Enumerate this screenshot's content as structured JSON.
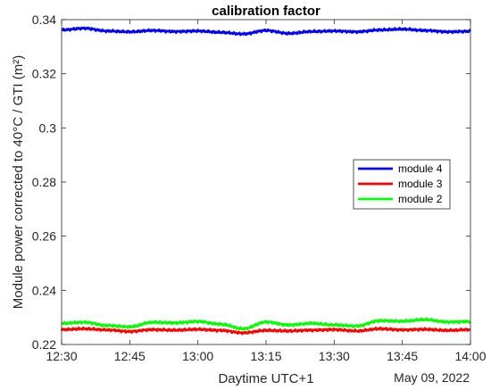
{
  "chart_data": {
    "type": "line",
    "title": "calibration factor",
    "xlabel": "Daytime UTC+1",
    "ylabel": "Module power corrected to 40°C / GTI (m²)",
    "date_label": "May 09, 2022",
    "x_ticks": [
      "12:30",
      "12:45",
      "13:00",
      "13:15",
      "13:30",
      "13:45",
      "14:00"
    ],
    "y_ticks": [
      "0.22",
      "0.24",
      "0.26",
      "0.28",
      "0.3",
      "0.32",
      "0.34"
    ],
    "xlim": [
      "12:30",
      "14:00"
    ],
    "ylim": [
      0.22,
      0.34
    ],
    "grid": false,
    "legend_position": "right",
    "series": [
      {
        "name": "module 4",
        "color": "#0000ff",
        "x": [
          "12:30",
          "12:35",
          "12:40",
          "12:45",
          "12:50",
          "12:55",
          "13:00",
          "13:05",
          "13:10",
          "13:15",
          "13:20",
          "13:25",
          "13:30",
          "13:35",
          "13:40",
          "13:45",
          "13:50",
          "13:55",
          "14:00"
        ],
        "values": [
          0.3362,
          0.3368,
          0.3358,
          0.3355,
          0.336,
          0.3356,
          0.3358,
          0.3353,
          0.3347,
          0.336,
          0.3349,
          0.3356,
          0.3358,
          0.3355,
          0.3362,
          0.3365,
          0.336,
          0.3355,
          0.3357
        ]
      },
      {
        "name": "module 3",
        "color": "#ff0000",
        "x": [
          "12:30",
          "12:35",
          "12:40",
          "12:45",
          "12:50",
          "12:55",
          "13:00",
          "13:05",
          "13:10",
          "13:15",
          "13:20",
          "13:25",
          "13:30",
          "13:35",
          "13:40",
          "13:45",
          "13:50",
          "13:55",
          "14:00"
        ],
        "values": [
          0.2255,
          0.2258,
          0.2254,
          0.2248,
          0.2255,
          0.2253,
          0.2256,
          0.2252,
          0.2243,
          0.2252,
          0.225,
          0.2253,
          0.2255,
          0.225,
          0.2258,
          0.2254,
          0.2256,
          0.2252,
          0.2255
        ]
      },
      {
        "name": "module 2",
        "color": "#00ff00",
        "x": [
          "12:30",
          "12:35",
          "12:40",
          "12:45",
          "12:50",
          "12:55",
          "13:00",
          "13:05",
          "13:10",
          "13:15",
          "13:20",
          "13:25",
          "13:30",
          "13:35",
          "13:40",
          "13:45",
          "13:50",
          "13:55",
          "14:00"
        ],
        "values": [
          0.2278,
          0.2282,
          0.227,
          0.2265,
          0.2282,
          0.228,
          0.2285,
          0.2275,
          0.2258,
          0.2283,
          0.2272,
          0.2278,
          0.2272,
          0.2268,
          0.2288,
          0.2286,
          0.2292,
          0.2283,
          0.2285
        ]
      }
    ]
  }
}
